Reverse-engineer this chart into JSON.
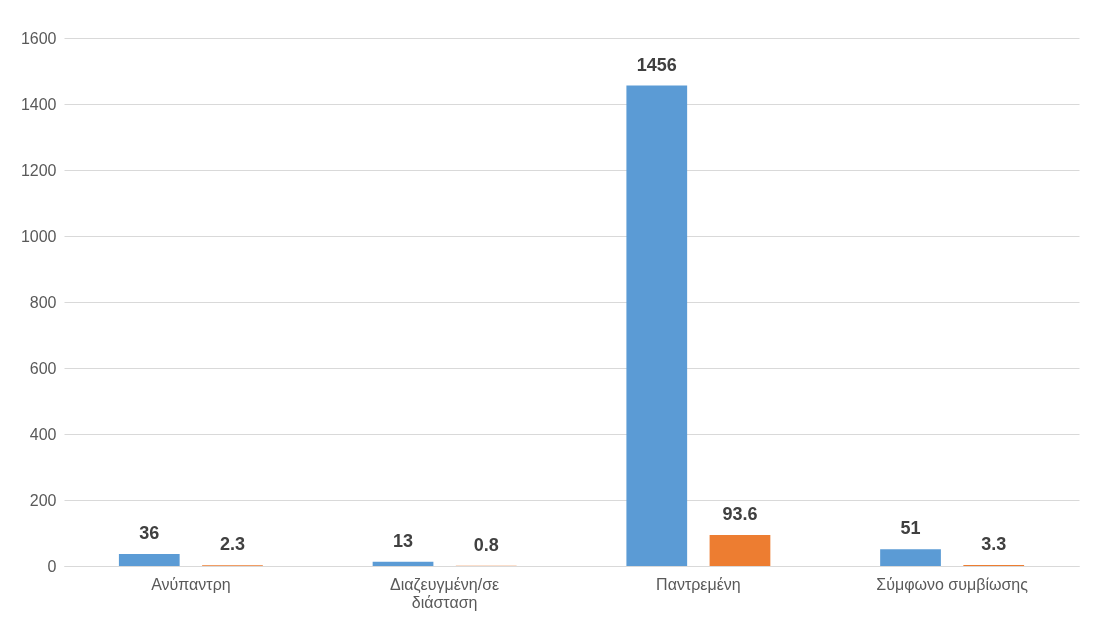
{
  "chart_data": {
    "type": "bar",
    "categories": [
      "Ανύπαντρη",
      "Διαζευγμένη/σε διάσταση",
      "Παντρεμένη",
      "Σύμφωνο συμβίωσης"
    ],
    "series": [
      {
        "color": "#5b9bd5",
        "values": [
          36,
          13,
          1456,
          51
        ]
      },
      {
        "color": "#ed7d31",
        "values": [
          2.3,
          0.8,
          93.6,
          3.3
        ]
      }
    ],
    "ylim": [
      0,
      1600
    ],
    "yticks": [
      0,
      200,
      400,
      600,
      800,
      1000,
      1200,
      1400,
      1600
    ],
    "grid": "y",
    "data_labels": true
  }
}
